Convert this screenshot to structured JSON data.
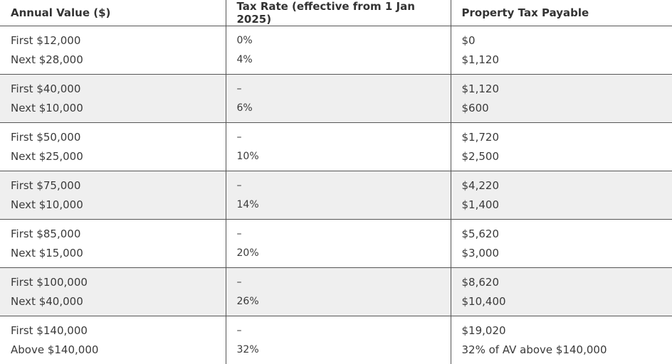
{
  "headers": [
    "Annual Value ($)",
    "Tax Rate (effective from 1 Jan 2025)",
    "Property Tax Payable"
  ],
  "rows": [
    {
      "av": [
        "First $12,000",
        "Next $28,000"
      ],
      "rate": [
        "0%",
        "4%"
      ],
      "tax": [
        "$0",
        "$1,120"
      ]
    },
    {
      "av": [
        "First $40,000",
        "Next $10,000"
      ],
      "rate": [
        "–",
        "6%"
      ],
      "tax": [
        "$1,120",
        "$600"
      ]
    },
    {
      "av": [
        "First $50,000",
        "Next $25,000"
      ],
      "rate": [
        "–",
        "10%"
      ],
      "tax": [
        "$1,720",
        "$2,500"
      ]
    },
    {
      "av": [
        "First $75,000",
        "Next $10,000"
      ],
      "rate": [
        "–",
        "14%"
      ],
      "tax": [
        "$4,220",
        "$1,400"
      ]
    },
    {
      "av": [
        "First $85,000",
        "Next $15,000"
      ],
      "rate": [
        "–",
        "20%"
      ],
      "tax": [
        "$5,620",
        "$3,000"
      ]
    },
    {
      "av": [
        "First $100,000",
        "Next $40,000"
      ],
      "rate": [
        "–",
        "26%"
      ],
      "tax": [
        "$8,620",
        "$10,400"
      ]
    },
    {
      "av": [
        "First $140,000",
        "Above $140,000"
      ],
      "rate": [
        "–",
        "32%"
      ],
      "tax": [
        "$19,020",
        "32% of AV above $140,000"
      ]
    }
  ]
}
